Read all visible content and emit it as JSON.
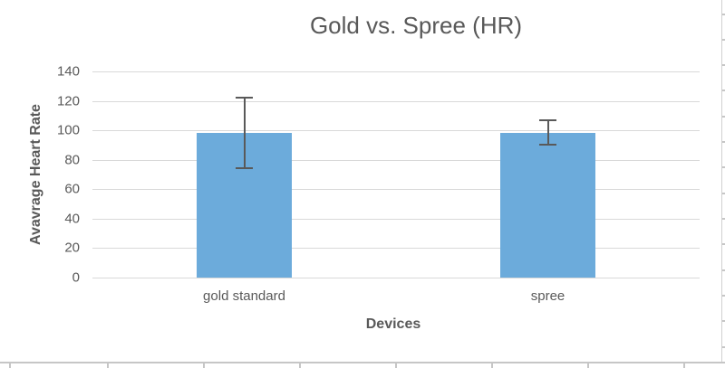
{
  "chart_data": {
    "type": "bar",
    "title": "Gold vs. Spree (HR)",
    "xlabel": "Devices",
    "ylabel": "Avavrage Heart Rate",
    "categories": [
      "gold standard",
      "spree"
    ],
    "values": [
      98,
      98
    ],
    "error_bars": [
      {
        "low": 74,
        "high": 122
      },
      {
        "low": 90,
        "high": 107
      }
    ],
    "ylim": [
      0,
      140
    ],
    "yticks": [
      0,
      20,
      40,
      60,
      80,
      100,
      120,
      140
    ],
    "grid": true,
    "legend": "none",
    "colors": {
      "bar_fill": "#6CABDB",
      "error_bar": "#595959",
      "gridline": "#D9D9D9",
      "text": "#595959",
      "sheet_border": "#C6C6C6",
      "background": "#FFFFFF"
    }
  }
}
